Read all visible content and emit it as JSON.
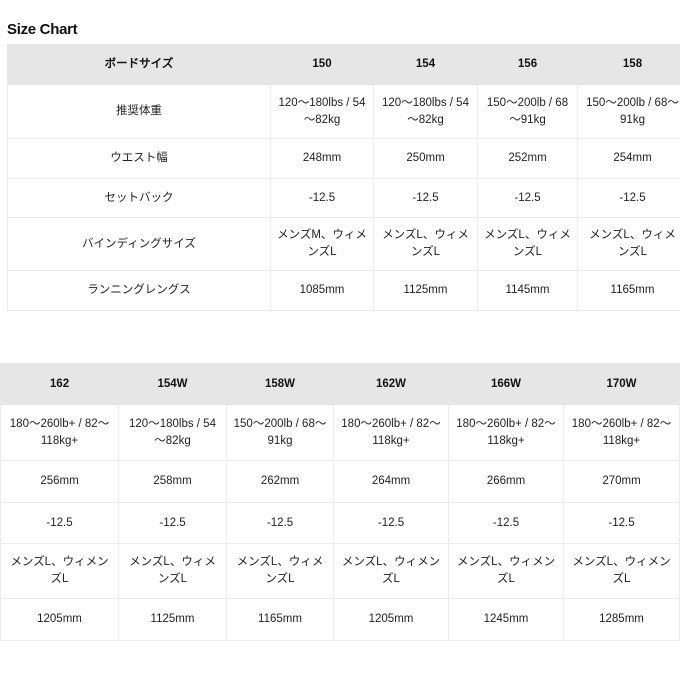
{
  "title": "Size Chart",
  "table1": {
    "header": [
      "ボードサイズ",
      "150",
      "154",
      "156",
      "158"
    ],
    "rows": [
      [
        "推奨体重",
        "120～180lbs / 54～82kg",
        "120～180lbs / 54～82kg",
        "150～200lb / 68～91kg",
        "150～200lb / 68～91kg"
      ],
      [
        "ウエスト幅",
        "248mm",
        "250mm",
        "252mm",
        "254mm"
      ],
      [
        "セットバック",
        "-12.5",
        "-12.5",
        "-12.5",
        "-12.5"
      ],
      [
        "バインディングサイズ",
        "メンズM、ウィメンズL",
        "メンズL、ウィメンズL",
        "メンズL、ウィメンズL",
        "メンズL、ウィメンズL"
      ],
      [
        "ランニングレングス",
        "1085mm",
        "1125mm",
        "1145mm",
        "1165mm"
      ]
    ]
  },
  "table2": {
    "header": [
      "162",
      "154W",
      "158W",
      "162W",
      "166W",
      "170W"
    ],
    "rows": [
      [
        "180～260lb+ / 82～118kg+",
        "120～180lbs / 54～82kg",
        "150～200lb / 68～91kg",
        "180～260lb+ / 82～118kg+",
        "180～260lb+ / 82～118kg+",
        "180～260lb+ / 82～118kg+"
      ],
      [
        "256mm",
        "258mm",
        "262mm",
        "264mm",
        "266mm",
        "270mm"
      ],
      [
        "-12.5",
        "-12.5",
        "-12.5",
        "-12.5",
        "-12.5",
        "-12.5"
      ],
      [
        "メンズL、ウィメンズL",
        "メンズL、ウィメンズL",
        "メンズL、ウィメンズL",
        "メンズL、ウィメンズL",
        "メンズL、ウィメンズL",
        "メンズL、ウィメンズL"
      ],
      [
        "1205mm",
        "1125mm",
        "1165mm",
        "1205mm",
        "1245mm",
        "1285mm"
      ]
    ]
  }
}
